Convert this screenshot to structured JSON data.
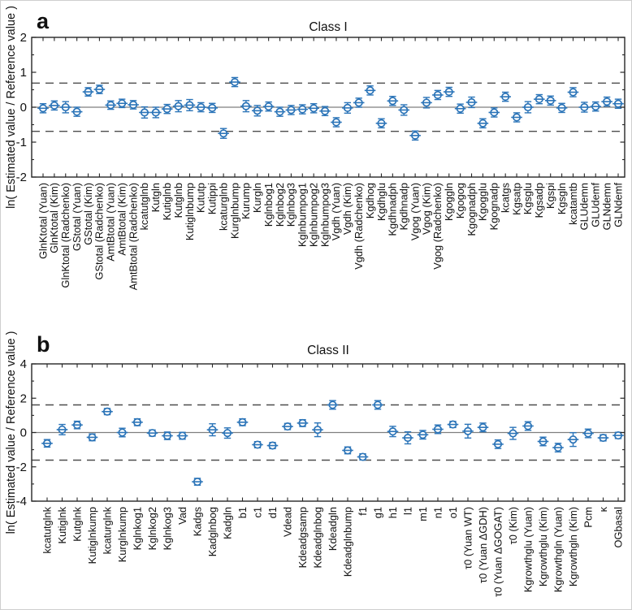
{
  "colors": {
    "marker": "#2b74b8",
    "dashed_line": "#4d4d4d",
    "zero_line": "#7f7f7f",
    "axis": "#262626",
    "text": "#111111"
  },
  "chart_data": [
    {
      "type": "scatter",
      "panel_letter": "a",
      "title": "Class I",
      "ylabel": "ln( Estimated value / Reference value )",
      "ylim": [
        -2,
        2
      ],
      "yticks": [
        2,
        1,
        0,
        -1,
        -2
      ],
      "yminor_step": 0.5,
      "reference_lines": {
        "solid": 0,
        "dashed": [
          0.69,
          -0.69
        ]
      },
      "grid": false,
      "legend": "none",
      "categories": [
        "GlnKtotal (Yuan)",
        "GlnKtotal (Kim)",
        "GlnKtotal (Radchenko)",
        "GStotal (Yuan)",
        "GStotal (Kim)",
        "GStotal (Radchenko)",
        "AmtBtotal (Yuan)",
        "AmtBtotal (Kim)",
        "AmtBtotal (Radchenko)",
        "kcatutglnb",
        "Kutgln",
        "Kutiglnb",
        "Kutglnb",
        "Kutiglnbump",
        "Kututp",
        "Kutippi",
        "kcaturglnb",
        "Kurglnbump",
        "Kurump",
        "Kurgln",
        "Kglnbog1",
        "Kglnbog2",
        "Kglnbog3",
        "Kglnbumpog1",
        "Kglnbumpog2",
        "Kglnbumpog3",
        "Vgdh (Yuan)",
        "Vgdh (Kim)",
        "Vgdh (Radchenko)",
        "Kgdhog",
        "Kgdhglu",
        "Kgdhnadph",
        "Kgdhnadp",
        "Vgog (Yuan)",
        "Vgog (Kim)",
        "Vgog (Radchenko)",
        "Kgoggln",
        "Kgogog",
        "Kgognadph",
        "Kgogglu",
        "Kgognadp",
        "kcatgs",
        "Kgsatp",
        "Kgsglu",
        "Kgsadp",
        "Kgspi",
        "Kgsgln",
        "kcatamtb",
        "GLUdemn",
        "GLUdemf",
        "GLNdemn",
        "GLNdemf"
      ],
      "values": [
        -0.03,
        0.05,
        0.0,
        -0.13,
        0.44,
        0.51,
        0.06,
        0.11,
        0.07,
        -0.15,
        -0.15,
        -0.05,
        0.03,
        0.06,
        0.0,
        -0.02,
        -0.75,
        0.72,
        0.03,
        -0.1,
        0.02,
        -0.13,
        -0.08,
        -0.06,
        -0.03,
        -0.11,
        -0.43,
        -0.02,
        0.13,
        0.48,
        -0.46,
        0.18,
        -0.08,
        -0.81,
        0.13,
        0.35,
        0.44,
        -0.04,
        0.14,
        -0.46,
        -0.15,
        0.3,
        -0.29,
        0.0,
        0.23,
        0.19,
        -0.02,
        0.43,
        0.0,
        0.02,
        0.16,
        0.1
      ],
      "errors": [
        0.13,
        0.13,
        0.16,
        0.13,
        0.12,
        0.12,
        0.12,
        0.12,
        0.12,
        0.16,
        0.15,
        0.13,
        0.16,
        0.16,
        0.13,
        0.13,
        0.14,
        0.13,
        0.16,
        0.15,
        0.13,
        0.13,
        0.13,
        0.13,
        0.13,
        0.13,
        0.13,
        0.15,
        0.13,
        0.13,
        0.13,
        0.13,
        0.15,
        0.13,
        0.15,
        0.13,
        0.13,
        0.13,
        0.15,
        0.13,
        0.13,
        0.13,
        0.13,
        0.16,
        0.13,
        0.13,
        0.13,
        0.13,
        0.14,
        0.13,
        0.13,
        0.13
      ]
    },
    {
      "type": "scatter",
      "panel_letter": "b",
      "title": "Class II",
      "ylabel": "ln( Estimated value / Reference value )",
      "ylim": [
        -4,
        4
      ],
      "yticks": [
        4,
        2,
        0,
        -2,
        -4
      ],
      "yminor_step": 1,
      "reference_lines": {
        "solid": 0,
        "dashed": [
          1.61,
          -1.61
        ]
      },
      "grid": false,
      "legend": "none",
      "categories": [
        "kcatutglnk",
        "Kutiglnk",
        "Kutglnk",
        "Kutiglnkump",
        "kcaturglnk",
        "Kurglnkump",
        "Kglnkog1",
        "Kglnkog2",
        "Kglnkog3",
        "Vad",
        "Kadgs",
        "Kadglnbog",
        "Kadgln",
        "b1",
        "c1",
        "d1",
        "Vdead",
        "Kdeadgsamp",
        "Kdeadglnbog",
        "Kdeadgln",
        "Kdeadglnbump",
        "f1",
        "g1",
        "h1",
        "l1",
        "m1",
        "n1",
        "o1",
        "τ0 (Yuan WT)",
        "τ0 (Yuan ΔGDH)",
        "τ0 (Yuan ΔGOGAT)",
        "τ0 (Kim)",
        "Kgrowthglu (Yuan)",
        "Kgrowthglu (Kim)",
        "Kgrowthgln (Yuan)",
        "Kgrowthgln (Kim)",
        "Pcm",
        "κ",
        "OGbasal"
      ],
      "values": [
        -0.63,
        0.17,
        0.44,
        -0.28,
        1.22,
        0.0,
        0.6,
        -0.03,
        -0.19,
        -0.19,
        -2.87,
        0.16,
        -0.03,
        0.6,
        -0.71,
        -0.76,
        0.35,
        0.55,
        0.16,
        1.61,
        -1.04,
        -1.42,
        1.61,
        0.06,
        -0.31,
        -0.13,
        0.19,
        0.47,
        0.08,
        0.3,
        -0.68,
        -0.05,
        0.38,
        -0.52,
        -0.88,
        -0.41,
        -0.05,
        -0.31,
        -0.17
      ],
      "errors": [
        0.22,
        0.3,
        0.22,
        0.2,
        0.18,
        0.25,
        0.2,
        0.18,
        0.22,
        0.2,
        0.2,
        0.35,
        0.3,
        0.2,
        0.18,
        0.18,
        0.18,
        0.2,
        0.4,
        0.25,
        0.2,
        0.18,
        0.25,
        0.3,
        0.35,
        0.25,
        0.25,
        0.18,
        0.4,
        0.25,
        0.25,
        0.35,
        0.25,
        0.25,
        0.25,
        0.4,
        0.25,
        0.18,
        0.18
      ]
    }
  ]
}
